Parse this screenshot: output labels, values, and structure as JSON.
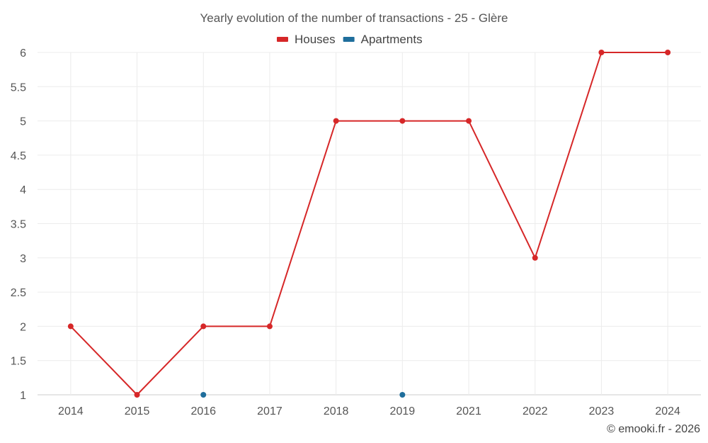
{
  "chart_data": {
    "type": "line",
    "title": "Yearly evolution of the number of transactions - 25 - Glère",
    "categories": [
      "2014",
      "2015",
      "2016",
      "2017",
      "2018",
      "2019",
      "2021",
      "2022",
      "2023",
      "2024"
    ],
    "series": [
      {
        "name": "Houses",
        "color": "#d62728",
        "values": [
          2,
          1,
          2,
          2,
          5,
          5,
          5,
          3,
          6,
          6
        ]
      },
      {
        "name": "Apartments",
        "color": "#1f6e9c",
        "values": [
          null,
          null,
          1,
          null,
          null,
          1,
          null,
          null,
          null,
          null
        ]
      }
    ],
    "ylim": [
      1,
      6
    ],
    "yticks": [
      1,
      1.5,
      2,
      2.5,
      3,
      3.5,
      4,
      4.5,
      5,
      5.5,
      6
    ],
    "xlabel": "",
    "ylabel": "",
    "legend": "top-center",
    "grid": true
  },
  "credit": "© emooki.fr - 2026"
}
